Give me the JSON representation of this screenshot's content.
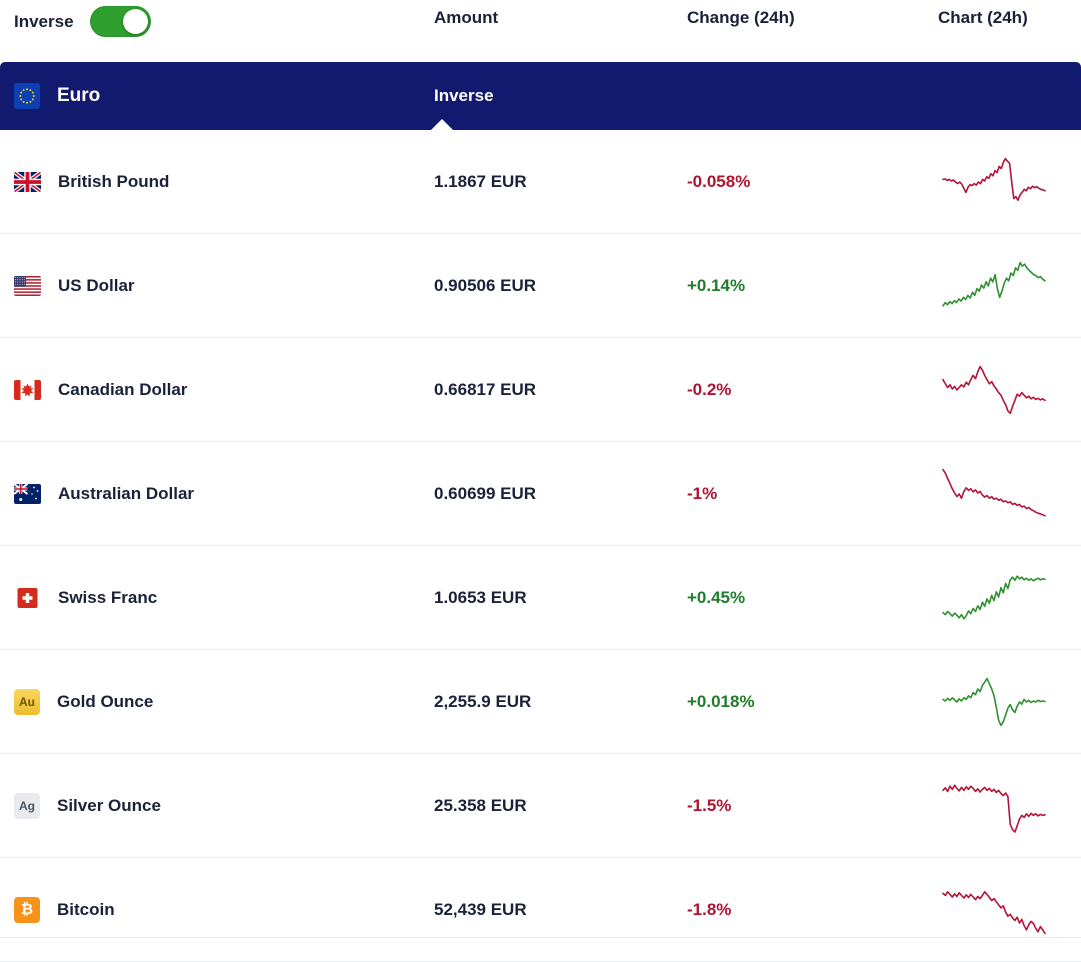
{
  "toolbar": {
    "inverse_label": "Inverse",
    "toggle_on": true,
    "toggle_icon": "inverse-toggle"
  },
  "columns": {
    "amount": "Amount",
    "change": "Change (24h)",
    "chart": "Chart (24h)"
  },
  "header": {
    "currency": "Euro",
    "mode_label": "Inverse",
    "icon": "eu-flag-icon"
  },
  "colors": {
    "toggle_green": "#2fa02f",
    "header_navy": "#121a70",
    "text_navy": "#1a2239",
    "negative": "#b01330",
    "positive": "#1e7e2b",
    "spark_negative": "#b31335",
    "spark_positive": "#2f8f31"
  },
  "rows": [
    {
      "name": "British Pound",
      "icon": "flag-gb",
      "icon_label": "",
      "amount": "1.1867 EUR",
      "change": "-0.058%",
      "direction": "down",
      "sparkline": [
        55,
        56,
        53,
        55,
        52,
        54,
        50,
        47,
        50,
        46,
        38,
        30,
        40,
        45,
        43,
        47,
        44,
        50,
        47,
        55,
        52,
        60,
        57,
        66,
        62,
        72,
        68,
        80,
        76,
        88,
        95,
        90,
        86,
        50,
        18,
        22,
        15,
        25,
        30,
        36,
        33,
        40,
        37,
        42,
        39,
        41,
        38,
        36,
        35,
        33
      ]
    },
    {
      "name": "US Dollar",
      "icon": "flag-us",
      "icon_label": "",
      "amount": "0.90506 EUR",
      "change": "+0.14%",
      "direction": "up",
      "sparkline": [
        12,
        18,
        14,
        20,
        16,
        22,
        18,
        25,
        21,
        28,
        24,
        32,
        27,
        38,
        32,
        45,
        40,
        52,
        46,
        58,
        50,
        65,
        58,
        72,
        45,
        28,
        40,
        55,
        65,
        60,
        75,
        70,
        85,
        80,
        95,
        88,
        92,
        85,
        80,
        76,
        72,
        70,
        66,
        68,
        63,
        60
      ]
    },
    {
      "name": "Canadian Dollar",
      "icon": "flag-ca",
      "icon_label": "",
      "amount": "0.66817 EUR",
      "change": "-0.2%",
      "direction": "down",
      "sparkline": [
        70,
        62,
        55,
        60,
        52,
        57,
        50,
        55,
        60,
        56,
        65,
        60,
        70,
        78,
        72,
        85,
        95,
        88,
        78,
        70,
        62,
        66,
        58,
        52,
        45,
        40,
        30,
        22,
        10,
        5,
        18,
        30,
        42,
        38,
        45,
        40,
        35,
        38,
        33,
        36,
        32,
        34,
        31,
        33,
        30
      ]
    },
    {
      "name": "Australian Dollar",
      "icon": "flag-au",
      "icon_label": "",
      "amount": "0.60699 EUR",
      "change": "-1%",
      "direction": "down",
      "sparkline": [
        97,
        90,
        80,
        70,
        60,
        52,
        45,
        50,
        42,
        55,
        62,
        57,
        60,
        54,
        58,
        52,
        55,
        48,
        44,
        47,
        42,
        45,
        40,
        42,
        38,
        40,
        35,
        37,
        33,
        35,
        30,
        32,
        28,
        30,
        25,
        27,
        22,
        24,
        20,
        18,
        15,
        13,
        12,
        10,
        8
      ]
    },
    {
      "name": "Swiss Franc",
      "icon": "flag-ch",
      "icon_label": "",
      "amount": "1.0653 EUR",
      "change": "+0.45%",
      "direction": "up",
      "sparkline": [
        22,
        18,
        24,
        20,
        15,
        21,
        17,
        12,
        18,
        10,
        16,
        25,
        20,
        30,
        24,
        35,
        28,
        42,
        34,
        48,
        40,
        55,
        45,
        62,
        52,
        70,
        60,
        78,
        68,
        85,
        90,
        84,
        92,
        87,
        90,
        85,
        88,
        84,
        87,
        83,
        86,
        88,
        85,
        87,
        86
      ]
    },
    {
      "name": "Gold Ounce",
      "icon": "badge-gold",
      "icon_label": "Au",
      "amount": "2,255.9 EUR",
      "change": "+0.018%",
      "direction": "up",
      "sparkline": [
        55,
        52,
        57,
        53,
        58,
        54,
        50,
        56,
        52,
        58,
        55,
        62,
        58,
        68,
        64,
        75,
        70,
        82,
        88,
        95,
        85,
        75,
        62,
        40,
        15,
        5,
        12,
        25,
        38,
        45,
        35,
        30,
        42,
        50,
        46,
        55,
        50,
        53,
        49,
        52,
        50,
        53,
        51,
        52,
        51
      ]
    },
    {
      "name": "Silver Ounce",
      "icon": "badge-silver",
      "icon_label": "Ag",
      "amount": "25.358 EUR",
      "change": "-1.5%",
      "direction": "down",
      "sparkline": [
        80,
        85,
        78,
        88,
        82,
        90,
        84,
        79,
        86,
        80,
        87,
        82,
        88,
        84,
        78,
        83,
        77,
        82,
        86,
        80,
        84,
        78,
        82,
        76,
        80,
        74,
        70,
        75,
        68,
        15,
        5,
        0,
        12,
        25,
        32,
        28,
        35,
        30,
        36,
        32,
        35,
        31,
        34,
        32,
        33
      ]
    },
    {
      "name": "Bitcoin",
      "icon": "badge-btc",
      "icon_label": "₿",
      "amount": "52,439 EUR",
      "change": "-1.8%",
      "direction": "down",
      "sparkline": [
        82,
        78,
        85,
        80,
        75,
        81,
        76,
        83,
        78,
        73,
        79,
        74,
        80,
        75,
        70,
        76,
        72,
        78,
        85,
        80,
        74,
        68,
        72,
        66,
        60,
        54,
        58,
        46,
        38,
        42,
        35,
        30,
        36,
        25,
        32,
        20,
        12,
        22,
        28,
        24,
        15,
        8,
        18,
        12,
        5
      ]
    }
  ]
}
